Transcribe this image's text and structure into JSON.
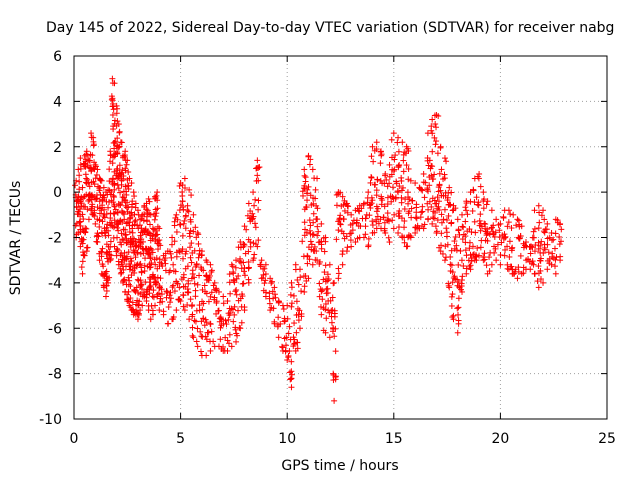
{
  "chart_data": {
    "type": "scatter",
    "title": "Day 145 of 2022, Sidereal Day-to-day VTEC variation (SDTVAR) for receiver nabg",
    "xlabel": "GPS time / hours",
    "ylabel": "SDTVAR / TECUs",
    "xlim": [
      0,
      25
    ],
    "ylim": [
      -10,
      6
    ],
    "xticks": [
      0,
      5,
      10,
      15,
      20,
      25
    ],
    "yticks": [
      -10,
      -8,
      -6,
      -4,
      -2,
      0,
      2,
      4,
      6
    ],
    "grid": true,
    "marker": "+",
    "colors": {
      "series": "#ff0000",
      "grid": "#a0a0a0",
      "axes": "#000000"
    },
    "series": [
      {
        "name": "SDTVAR",
        "x": [
          0.1,
          0.2,
          0.3,
          0.4,
          0.5,
          0.6,
          0.7,
          0.8,
          0.9,
          1.0,
          1.1,
          1.2,
          1.3,
          1.4,
          1.5,
          1.6,
          1.7,
          1.8,
          1.9,
          2.0,
          2.1,
          2.2,
          2.3,
          2.4,
          2.5,
          2.6,
          2.7,
          2.8,
          2.9,
          3.0,
          3.1,
          3.2,
          3.3,
          3.4,
          3.5,
          3.6,
          3.7,
          3.8,
          3.9,
          4.0,
          4.2,
          4.4,
          4.6,
          4.8,
          5.0,
          5.2,
          5.4,
          5.6,
          5.8,
          6.0,
          6.2,
          6.4,
          6.6,
          6.8,
          7.0,
          7.2,
          7.4,
          7.6,
          7.8,
          8.0,
          8.2,
          8.4,
          8.6,
          8.8,
          9.0,
          9.2,
          9.4,
          9.6,
          9.8,
          10.0,
          10.2,
          10.4,
          10.6,
          10.8,
          11.0,
          11.2,
          11.4,
          11.6,
          11.8,
          12.0,
          12.2,
          12.4,
          12.6,
          12.8,
          13.0,
          13.2,
          13.4,
          13.6,
          13.8,
          14.0,
          14.2,
          14.4,
          14.6,
          14.8,
          15.0,
          15.2,
          15.4,
          15.6,
          15.8,
          16.0,
          16.2,
          16.4,
          16.6,
          16.8,
          17.0,
          17.2,
          17.4,
          17.6,
          17.8,
          18.0,
          18.2,
          18.4,
          18.6,
          18.8,
          19.0,
          19.2,
          19.4,
          19.6,
          19.8,
          20.0,
          20.2,
          20.4,
          20.6,
          20.8,
          21.0,
          21.2,
          21.4,
          21.6,
          21.8,
          22.0,
          22.2,
          22.4,
          22.6,
          22.8
        ],
        "upper": [
          0.5,
          1.0,
          1.5,
          0.2,
          1.6,
          1.8,
          1.4,
          2.6,
          2.4,
          1.2,
          1.0,
          0.6,
          0.5,
          0.2,
          0.0,
          0.1,
          1.8,
          5.0,
          4.8,
          3.8,
          3.0,
          2.2,
          1.6,
          1.8,
          1.4,
          0.6,
          0.4,
          0.0,
          -0.5,
          -0.8,
          -1.2,
          -1.0,
          -0.6,
          -0.5,
          -0.3,
          -1.0,
          -1.6,
          -0.2,
          0.0,
          -1.6,
          -2.8,
          -2.6,
          -2.0,
          -1.0,
          0.4,
          0.6,
          0.1,
          -1.0,
          -1.8,
          -2.6,
          -3.0,
          -3.2,
          -4.0,
          -4.4,
          -4.6,
          -4.8,
          -3.2,
          -3.0,
          -2.2,
          -1.5,
          -0.5,
          0.0,
          1.4,
          -3.0,
          -3.2,
          -3.8,
          -4.2,
          -4.8,
          -5.0,
          -5.0,
          -4.0,
          -3.2,
          -3.4,
          1.0,
          1.6,
          1.0,
          0.6,
          -1.4,
          -2.0,
          -3.2,
          -4.0,
          0.0,
          -0.2,
          -0.5,
          -1.0,
          -0.8,
          -0.6,
          -0.5,
          0.0,
          2.0,
          2.2,
          1.8,
          0.8,
          1.2,
          2.6,
          2.4,
          2.2,
          2.0,
          0.5,
          0.4,
          0.2,
          0.8,
          2.6,
          3.2,
          3.4,
          2.0,
          1.5,
          0.2,
          -0.6,
          -1.2,
          -1.0,
          -0.4,
          0.0,
          0.6,
          0.8,
          0.0,
          -0.4,
          -0.8,
          -1.2,
          -1.4,
          -0.8,
          -0.8,
          -1.0,
          -1.2,
          -1.5,
          -2.2,
          -2.4,
          -0.8,
          -0.6,
          -0.8,
          -1.4,
          -1.8,
          -1.2,
          -1.4
        ],
        "lower": [
          -2.0,
          -1.8,
          -2.4,
          -3.6,
          -2.8,
          -2.6,
          -1.2,
          -0.8,
          -1.0,
          -1.4,
          -2.2,
          -3.0,
          -3.6,
          -4.2,
          -4.6,
          -4.0,
          -3.0,
          -1.5,
          -2.4,
          -2.8,
          -3.2,
          -3.6,
          -4.0,
          -4.4,
          -4.8,
          -5.0,
          -5.2,
          -5.4,
          -5.4,
          -5.6,
          -5.2,
          -5.0,
          -4.6,
          -4.8,
          -5.2,
          -5.6,
          -5.4,
          -5.0,
          -4.6,
          -5.2,
          -5.4,
          -5.8,
          -5.6,
          -5.2,
          -4.8,
          -5.2,
          -5.6,
          -6.4,
          -6.8,
          -7.2,
          -7.2,
          -7.0,
          -6.8,
          -6.8,
          -7.0,
          -7.0,
          -6.8,
          -6.6,
          -6.0,
          -5.2,
          -4.0,
          -3.0,
          -2.4,
          -3.8,
          -4.6,
          -5.2,
          -5.8,
          -6.4,
          -7.0,
          -7.4,
          -8.6,
          -7.0,
          -6.0,
          -4.4,
          -3.8,
          -3.2,
          -3.0,
          -5.4,
          -6.2,
          -6.4,
          -9.2,
          -3.8,
          -3.2,
          -2.6,
          -2.4,
          -2.2,
          -2.0,
          -2.0,
          -2.4,
          -1.8,
          -1.6,
          -1.6,
          -1.8,
          -2.2,
          -1.6,
          -1.8,
          -2.0,
          -2.4,
          -2.0,
          -1.8,
          -1.6,
          -1.6,
          -1.2,
          -1.4,
          -1.8,
          -2.6,
          -3.0,
          -4.2,
          -5.6,
          -6.2,
          -4.4,
          -3.6,
          -3.4,
          -3.0,
          -2.8,
          -3.0,
          -3.6,
          -3.2,
          -3.0,
          -3.2,
          -2.8,
          -3.4,
          -3.6,
          -3.8,
          -3.6,
          -3.4,
          -3.4,
          -3.6,
          -4.2,
          -4.0,
          -3.4,
          -3.2,
          -3.6,
          -3.0
        ]
      }
    ]
  }
}
